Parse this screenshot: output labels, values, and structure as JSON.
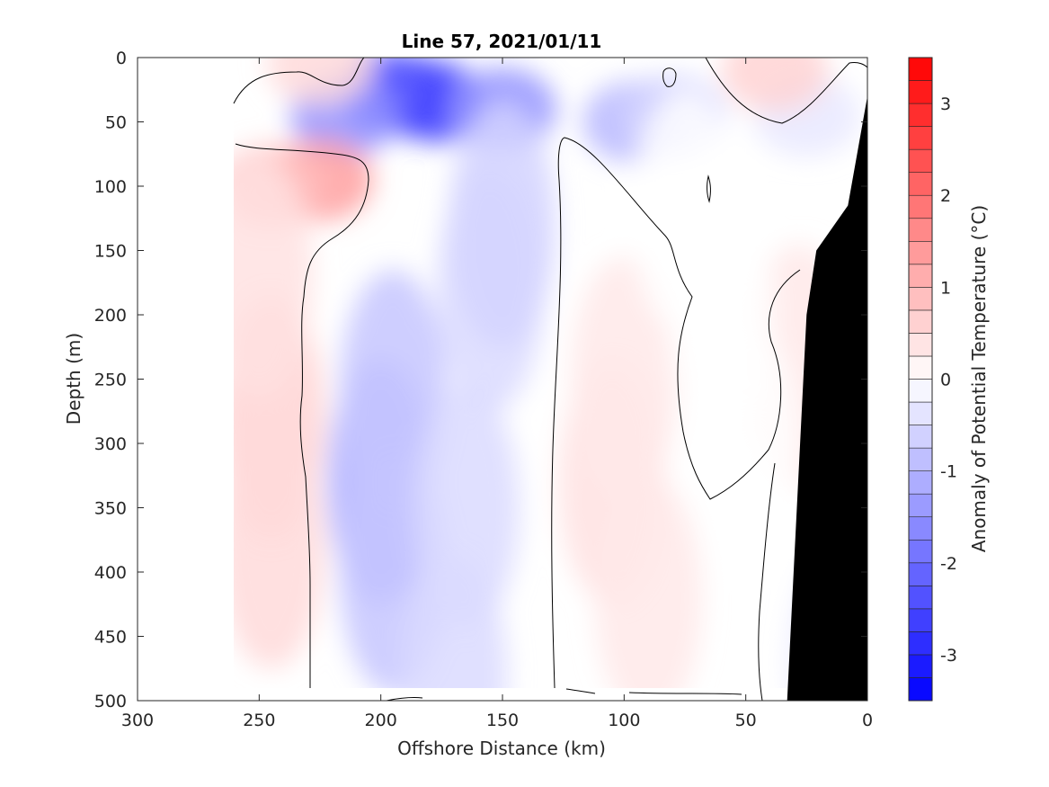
{
  "chart_data": {
    "type": "heatmap",
    "title": "Line 57, 2021/01/11",
    "xlabel": "Offshore Distance (km)",
    "ylabel": "Depth (m)",
    "colorbar_label": "Anomaly of Potential Temperature (°C)",
    "xlim": [
      300,
      0
    ],
    "ylim": [
      0,
      500
    ],
    "x_reversed": true,
    "y_reversed": true,
    "x_ticks": [
      300,
      250,
      200,
      150,
      100,
      50,
      0
    ],
    "y_ticks": [
      0,
      50,
      100,
      150,
      200,
      250,
      300,
      350,
      400,
      450,
      500
    ],
    "colorbar": {
      "range": [
        -3.5,
        3.5
      ],
      "step": 0.25,
      "ticks": [
        -3,
        -2,
        -1,
        0,
        1,
        2,
        3
      ],
      "colormap": "blue-white-red",
      "negative_color": "#0000ff",
      "positive_color": "#ff0000",
      "zero_color": "#ffffff"
    },
    "data_extent_x": [
      0,
      260
    ],
    "bathymetry_color": "#000000",
    "bathymetry": [
      [
        33,
        500
      ],
      [
        25,
        200
      ],
      [
        21,
        150
      ],
      [
        8,
        115
      ],
      [
        0,
        30
      ]
    ],
    "anomaly_field": [
      {
        "x": 188,
        "y": 30,
        "value": -3.0
      },
      {
        "x": 175,
        "y": 35,
        "value": -2.5
      },
      {
        "x": 200,
        "y": 25,
        "value": -2.2
      },
      {
        "x": 215,
        "y": 45,
        "value": -1.5
      },
      {
        "x": 150,
        "y": 40,
        "value": -1.5
      },
      {
        "x": 95,
        "y": 50,
        "value": -1.0
      },
      {
        "x": 80,
        "y": 45,
        "value": -0.6
      },
      {
        "x": 200,
        "y": 330,
        "value": -1.1
      },
      {
        "x": 195,
        "y": 260,
        "value": -0.8
      },
      {
        "x": 195,
        "y": 400,
        "value": -0.8
      },
      {
        "x": 165,
        "y": 350,
        "value": -0.5
      },
      {
        "x": 155,
        "y": 180,
        "value": -0.5
      },
      {
        "x": 150,
        "y": 130,
        "value": -0.6
      },
      {
        "x": 170,
        "y": 480,
        "value": -0.5
      },
      {
        "x": 25,
        "y": 45,
        "value": -0.3
      },
      {
        "x": 225,
        "y": 95,
        "value": 1.3
      },
      {
        "x": 245,
        "y": 100,
        "value": 0.9
      },
      {
        "x": 245,
        "y": 280,
        "value": 0.6
      },
      {
        "x": 245,
        "y": 380,
        "value": 0.5
      },
      {
        "x": 250,
        "y": 170,
        "value": 0.4
      },
      {
        "x": 225,
        "y": 5,
        "value": 0.5
      },
      {
        "x": 38,
        "y": 10,
        "value": 0.6
      },
      {
        "x": 105,
        "y": 330,
        "value": 0.4
      },
      {
        "x": 100,
        "y": 250,
        "value": 0.3
      },
      {
        "x": 90,
        "y": 420,
        "value": 0.3
      },
      {
        "x": 28,
        "y": 240,
        "value": 0.3
      },
      {
        "x": 60,
        "y": 200,
        "value": 0.0
      },
      {
        "x": 50,
        "y": 300,
        "value": 0.0
      },
      {
        "x": 75,
        "y": 120,
        "value": 0.0
      },
      {
        "x": 10,
        "y": 470,
        "value": -0.3
      }
    ]
  }
}
